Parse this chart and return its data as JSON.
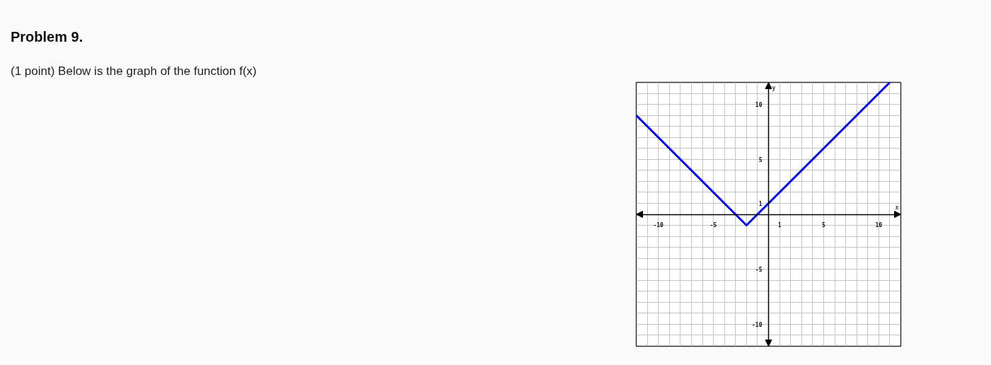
{
  "chart_data": {
    "type": "line",
    "title": "Problem 9.",
    "subtitle": "(1 point) Below is the graph of the function f(x)",
    "xlabel": "x",
    "ylabel": "y",
    "x": [
      -12,
      -2,
      11
    ],
    "series": [
      {
        "color": "#0000ff",
        "values": [
          9,
          -1,
          12
        ]
      }
    ],
    "xlim": [
      -12,
      12
    ],
    "ylim": [
      -12,
      12
    ],
    "xticks": [
      {
        "value": -12,
        "label": null
      },
      {
        "value": -11,
        "label": null
      },
      -10,
      {
        "value": -9,
        "label": null
      },
      {
        "value": -8,
        "label": null
      },
      {
        "value": -7,
        "label": null
      },
      {
        "value": -6,
        "label": null
      },
      -5,
      {
        "value": -4,
        "label": null
      },
      {
        "value": -3,
        "label": null
      },
      {
        "value": -2,
        "label": null
      },
      {
        "value": -1,
        "label": null
      },
      {
        "value": 0,
        "label": null
      },
      1,
      {
        "value": 2,
        "label": null
      },
      {
        "value": 3,
        "label": null
      },
      {
        "value": 4,
        "label": null
      },
      5,
      {
        "value": 6,
        "label": null
      },
      {
        "value": 7,
        "label": null
      },
      {
        "value": 8,
        "label": null
      },
      {
        "value": 9,
        "label": null
      },
      10,
      {
        "value": 11,
        "label": null
      },
      {
        "value": 12,
        "label": null
      }
    ],
    "yticks": [
      {
        "value": -12,
        "label": null
      },
      {
        "value": -11,
        "label": null
      },
      -10,
      {
        "value": -9,
        "label": null
      },
      {
        "value": -8,
        "label": null
      },
      {
        "value": -7,
        "label": null
      },
      {
        "value": -6,
        "label": null
      },
      -5,
      {
        "value": -4,
        "label": null
      },
      {
        "value": -3,
        "label": null
      },
      {
        "value": -2,
        "label": null
      },
      {
        "value": -1,
        "label": null
      },
      {
        "value": 0,
        "label": null
      },
      1,
      {
        "value": 2,
        "label": null
      },
      {
        "value": 3,
        "label": null
      },
      {
        "value": 4,
        "label": null
      },
      5,
      {
        "value": 6,
        "label": null
      },
      {
        "value": 7,
        "label": null
      },
      {
        "value": 8,
        "label": null
      },
      {
        "value": 9,
        "label": null
      },
      10,
      {
        "value": 11,
        "label": null
      },
      {
        "value": 12,
        "label": null
      }
    ],
    "grid": true,
    "line_style": "solid"
  }
}
